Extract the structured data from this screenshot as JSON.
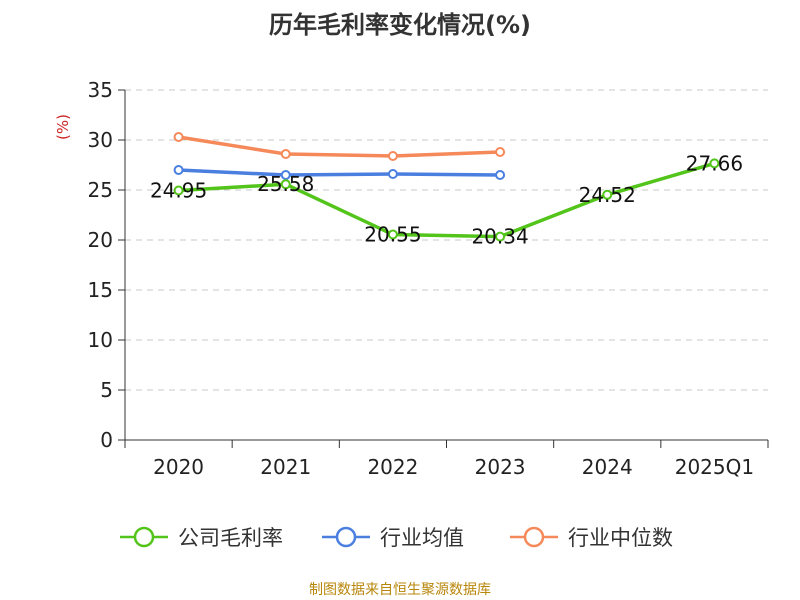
{
  "title": "历年毛利率变化情况(%)",
  "unit_label": "(%)",
  "source": "制图数据来自恒生聚源数据库",
  "chart_data": {
    "type": "line",
    "title": "历年毛利率变化情况(%)",
    "xlabel": "",
    "ylabel": "(%)",
    "categories": [
      "2020",
      "2021",
      "2022",
      "2023",
      "2024",
      "2025Q1"
    ],
    "ylim": [
      0,
      35
    ],
    "yticks": [
      0,
      5,
      10,
      15,
      20,
      25,
      30,
      35
    ],
    "grid": true,
    "legend_position": "bottom",
    "series": [
      {
        "name": "公司毛利率",
        "color": "#52c41a",
        "values": [
          24.95,
          25.58,
          20.55,
          20.34,
          24.52,
          27.66
        ],
        "labels": [
          "24.95",
          "25.58",
          "20.55",
          "20.34",
          "24.52",
          "27.66"
        ]
      },
      {
        "name": "行业均值",
        "color": "#4a7fe0",
        "values": [
          27.0,
          26.5,
          26.6,
          26.5,
          null,
          null
        ]
      },
      {
        "name": "行业中位数",
        "color": "#f5895a",
        "values": [
          30.3,
          28.6,
          28.4,
          28.8,
          null,
          null
        ]
      }
    ]
  }
}
